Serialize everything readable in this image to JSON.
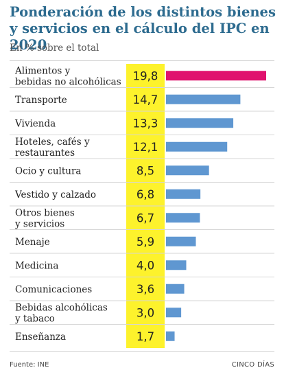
{
  "header": {
    "title": "Ponderación de los distintos bienes y servicios en el cálculo del IPC en 2020",
    "subtitle": "En % sobre el total"
  },
  "footer": {
    "source": "Fuente: INE",
    "brand": "CINCO DÍAS"
  },
  "colors": {
    "highlight_bar": "#e0126e",
    "bar": "#5f97d1",
    "value_band": "#fdf22c",
    "row_separator": "#d6d6d6",
    "title": "#2d6b8f"
  },
  "chart_data": {
    "type": "bar",
    "orientation": "horizontal",
    "unit": "%",
    "categories": [
      [
        "Alimentos y",
        "bebidas no alcohólicas"
      ],
      [
        "Transporte"
      ],
      [
        "Vivienda"
      ],
      [
        "Hoteles, cafés y",
        "restaurantes"
      ],
      [
        "Ocio y cultura"
      ],
      [
        "Vestido y calzado"
      ],
      [
        "Otros bienes",
        "y servicios"
      ],
      [
        "Menaje"
      ],
      [
        "Medicina"
      ],
      [
        "Comunicaciones"
      ],
      [
        "Bebidas alcohólicas",
        "y tabaco"
      ],
      [
        "Enseñanza"
      ]
    ],
    "values": [
      19.8,
      14.7,
      13.3,
      12.1,
      8.5,
      6.8,
      6.7,
      5.9,
      4.0,
      3.6,
      3.0,
      1.7
    ],
    "value_labels": [
      "19,8",
      "14,7",
      "13,3",
      "12,1",
      "8,5",
      "6,8",
      "6,7",
      "5,9",
      "4,0",
      "3,6",
      "3,0",
      "1,7"
    ],
    "highlight_index": 0,
    "xlim": [
      0,
      19.8
    ],
    "grid": false,
    "legend": "none"
  }
}
